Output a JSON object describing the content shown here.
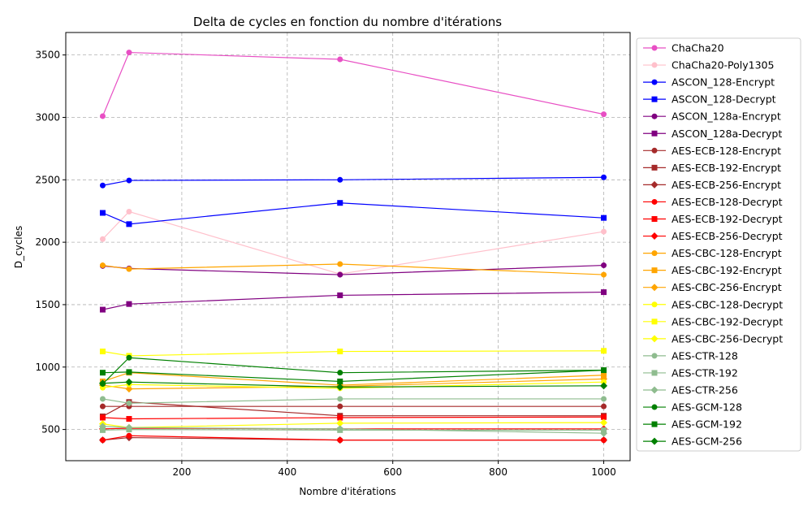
{
  "chart_data": {
    "type": "line",
    "title": "Delta de cycles en fonction du nombre d'itérations",
    "xlabel": "Nombre d'itérations",
    "ylabel": "D_cycles",
    "x": [
      50,
      100,
      500,
      1000
    ],
    "xlim": [
      -20,
      1050
    ],
    "ylim": [
      250,
      3680
    ],
    "xticks": [
      200,
      400,
      600,
      800,
      1000
    ],
    "yticks": [
      500,
      1000,
      1500,
      2000,
      2500,
      3000,
      3500
    ],
    "grid": true,
    "legend_position": "outside-right",
    "series": [
      {
        "name": "ChaCha20",
        "color": "#e84fc4",
        "marker": "circle",
        "values": [
          3010,
          3520,
          3465,
          3025
        ]
      },
      {
        "name": "ChaCha20-Poly1305",
        "color": "#ffc0cb",
        "marker": "circle",
        "values": [
          2025,
          2245,
          1745,
          2085
        ]
      },
      {
        "name": "ASCON_128-Encrypt",
        "color": "#0000ff",
        "marker": "circle",
        "values": [
          2455,
          2495,
          2500,
          2520
        ]
      },
      {
        "name": "ASCON_128-Decrypt",
        "color": "#0000ff",
        "marker": "square",
        "values": [
          2235,
          2145,
          2315,
          2195
        ]
      },
      {
        "name": "ASCON_128a-Encrypt",
        "color": "#800080",
        "marker": "circle",
        "values": [
          1810,
          1790,
          1740,
          1815
        ]
      },
      {
        "name": "ASCON_128a-Decrypt",
        "color": "#800080",
        "marker": "square",
        "values": [
          1460,
          1505,
          1575,
          1600
        ]
      },
      {
        "name": "AES-ECB-128-Encrypt",
        "color": "#a52a2a",
        "marker": "circle",
        "values": [
          685,
          685,
          685,
          685
        ]
      },
      {
        "name": "AES-ECB-192-Encrypt",
        "color": "#a52a2a",
        "marker": "square",
        "values": [
          605,
          720,
          610,
          610
        ]
      },
      {
        "name": "AES-ECB-256-Encrypt",
        "color": "#a52a2a",
        "marker": "diamond",
        "values": [
          415,
          435,
          415,
          415
        ]
      },
      {
        "name": "AES-ECB-128-Decrypt",
        "color": "#ff0000",
        "marker": "circle",
        "values": [
          415,
          450,
          415,
          415
        ]
      },
      {
        "name": "AES-ECB-192-Decrypt",
        "color": "#ff0000",
        "marker": "square",
        "values": [
          595,
          585,
          595,
          600
        ]
      },
      {
        "name": "AES-ECB-256-Decrypt",
        "color": "#ff0000",
        "marker": "diamond",
        "values": [
          505,
          510,
          505,
          505
        ]
      },
      {
        "name": "AES-CBC-128-Encrypt",
        "color": "#ffa500",
        "marker": "circle",
        "values": [
          1815,
          1785,
          1825,
          1740
        ]
      },
      {
        "name": "AES-CBC-192-Encrypt",
        "color": "#ffa500",
        "marker": "square",
        "values": [
          885,
          955,
          855,
          935
        ]
      },
      {
        "name": "AES-CBC-256-Encrypt",
        "color": "#ffa500",
        "marker": "diamond",
        "values": [
          855,
          825,
          845,
          905
        ]
      },
      {
        "name": "AES-CBC-128-Decrypt",
        "color": "#ffff00",
        "marker": "circle",
        "values": [
          835,
          860,
          830,
          880
        ]
      },
      {
        "name": "AES-CBC-192-Decrypt",
        "color": "#ffff00",
        "marker": "square",
        "values": [
          1125,
          1090,
          1125,
          1130
        ]
      },
      {
        "name": "AES-CBC-256-Decrypt",
        "color": "#ffff00",
        "marker": "diamond",
        "values": [
          545,
          515,
          550,
          555
        ]
      },
      {
        "name": "AES-CTR-128",
        "color": "#8fbc8f",
        "marker": "circle",
        "values": [
          745,
          710,
          745,
          745
        ]
      },
      {
        "name": "AES-CTR-192",
        "color": "#8fbc8f",
        "marker": "square",
        "values": [
          495,
          500,
          495,
          495
        ]
      },
      {
        "name": "AES-CTR-256",
        "color": "#8fbc8f",
        "marker": "diamond",
        "values": [
          525,
          515,
          505,
          470
        ]
      },
      {
        "name": "AES-GCM-128",
        "color": "#008000",
        "marker": "circle",
        "values": [
          865,
          1075,
          955,
          975
        ]
      },
      {
        "name": "AES-GCM-192",
        "color": "#008000",
        "marker": "square",
        "values": [
          955,
          960,
          885,
          975
        ]
      },
      {
        "name": "AES-GCM-256",
        "color": "#008000",
        "marker": "diamond",
        "values": [
          870,
          880,
          840,
          850
        ]
      }
    ]
  }
}
